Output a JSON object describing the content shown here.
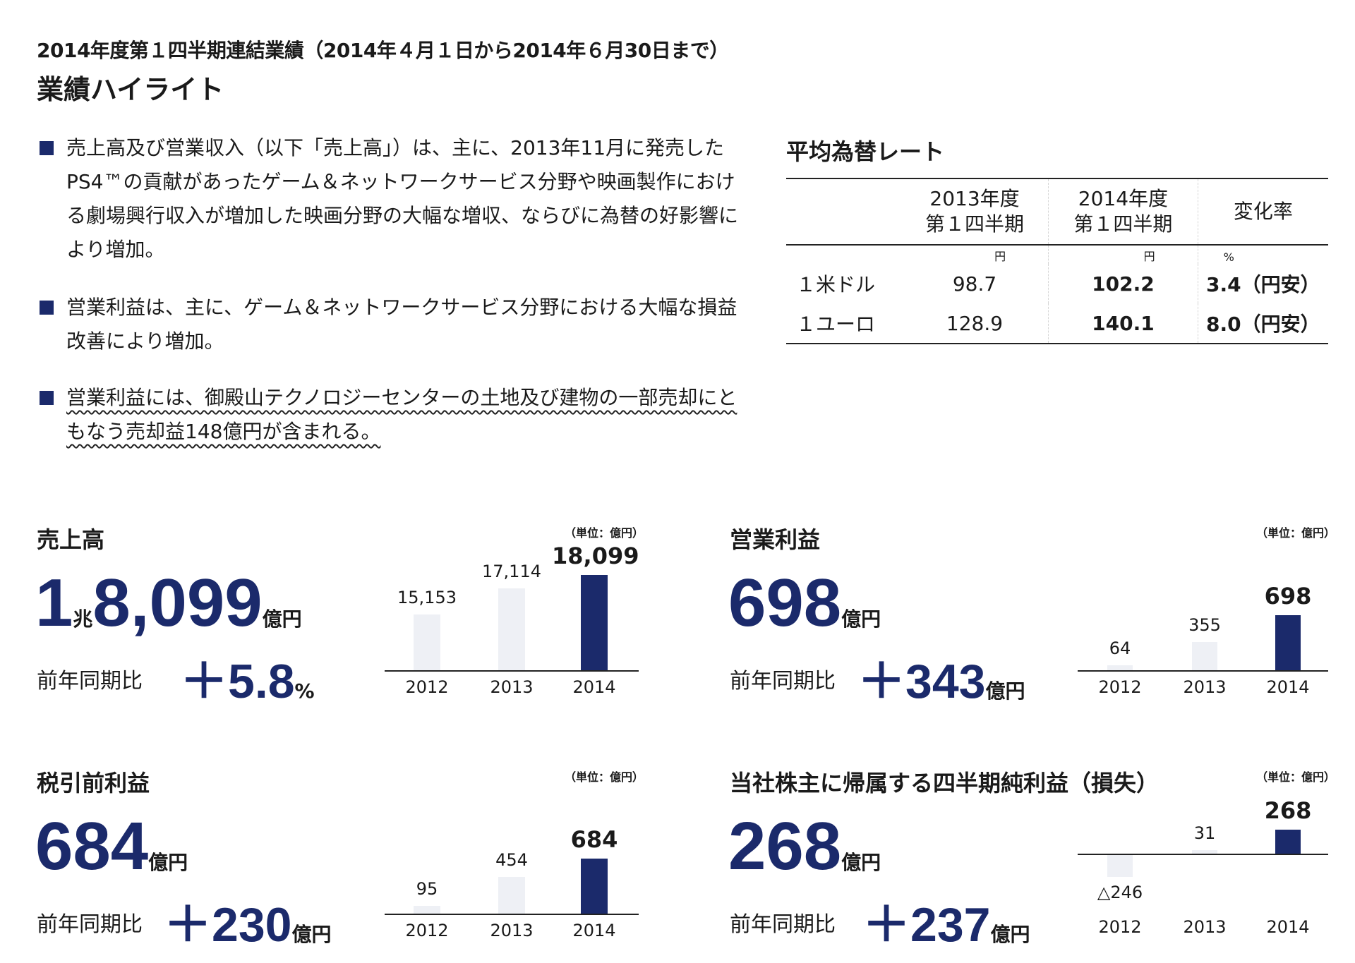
{
  "header": {
    "title": "2014年度第１四半期連結業績（2014年４月１日から2014年６月30日まで）",
    "subtitle": "業績ハイライト"
  },
  "bullets": [
    "売上高及び営業収入（以下「売上高」）は、主に、2013年11月に発売したPS4™の貢献があったゲーム＆ネットワークサービス分野や映画製作における劇場興行収入が増加した映画分野の大幅な増収、ならびに為替の好影響により増加。",
    "営業利益は、主に、ゲーム＆ネットワークサービス分野における大幅な損益改善により増加。",
    "営業利益には、御殿山テクノロジーセンターの土地及び建物の一部売却にともなう売却益148億円が含まれる。"
  ],
  "fx": {
    "title": "平均為替レート",
    "col1_line1": "2013年度",
    "col1_line2": "第１四半期",
    "col2_line1": "2014年度",
    "col2_line2": "第１四半期",
    "col3": "変化率",
    "unit1": "円",
    "unit2": "円",
    "unit3": "%",
    "rows": [
      {
        "label": "１米ドル",
        "v2013": "98.7",
        "v2014": "102.2",
        "change": "3.4（円安）"
      },
      {
        "label": "１ユーロ",
        "v2013": "128.9",
        "v2014": "140.1",
        "change": "8.0（円安）"
      }
    ]
  },
  "panels": {
    "sales": {
      "title": "売上高",
      "big_prefix": "1",
      "big_cho": "兆",
      "big_num": "8,099",
      "big_unit": "億円",
      "yoy_label": "前年同期比",
      "yoy_val": "＋5.8",
      "yoy_unit": "%",
      "unit_note": "（単位：億円）"
    },
    "op": {
      "title": "営業利益",
      "big_num": "698",
      "big_unit": "億円",
      "yoy_label": "前年同期比",
      "yoy_val": "＋343",
      "yoy_unit": "億円",
      "unit_note": "（単位：億円）"
    },
    "pretax": {
      "title": "税引前利益",
      "big_num": "684",
      "big_unit": "億円",
      "yoy_label": "前年同期比",
      "yoy_val": "＋230",
      "yoy_unit": "億円",
      "unit_note": "（単位：億円）"
    },
    "net": {
      "title": "当社株主に帰属する四半期純利益（損失）",
      "big_num": "268",
      "big_unit": "億円",
      "yoy_label": "前年同期比",
      "yoy_val": "＋237",
      "yoy_unit": "億円",
      "unit_note": "（単位：億円）"
    }
  },
  "chart_data": [
    {
      "type": "bar",
      "name": "sales",
      "categories": [
        "2012",
        "2013",
        "2014"
      ],
      "values": [
        15153,
        17114,
        18099
      ],
      "labels": [
        "15,153",
        "17,114",
        "18,099"
      ]
    },
    {
      "type": "bar",
      "name": "op",
      "categories": [
        "2012",
        "2013",
        "2014"
      ],
      "values": [
        64,
        355,
        698
      ],
      "labels": [
        "64",
        "355",
        "698"
      ]
    },
    {
      "type": "bar",
      "name": "pretax",
      "categories": [
        "2012",
        "2013",
        "2014"
      ],
      "values": [
        95,
        454,
        684
      ],
      "labels": [
        "95",
        "454",
        "684"
      ]
    },
    {
      "type": "bar",
      "name": "net",
      "categories": [
        "2012",
        "2013",
        "2014"
      ],
      "values": [
        -246,
        31,
        268
      ],
      "labels": [
        "△246",
        "31",
        "268"
      ]
    }
  ]
}
